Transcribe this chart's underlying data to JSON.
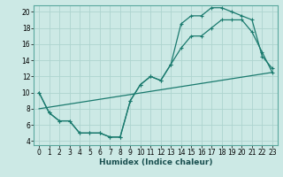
{
  "xlabel": "Humidex (Indice chaleur)",
  "ylabel": "",
  "bg_color": "#cce9e5",
  "grid_color": "#aed4cf",
  "line_color": "#1a7a6e",
  "xlim": [
    -0.5,
    23.5
  ],
  "ylim": [
    3.5,
    20.8
  ],
  "xticks": [
    0,
    1,
    2,
    3,
    4,
    5,
    6,
    7,
    8,
    9,
    10,
    11,
    12,
    13,
    14,
    15,
    16,
    17,
    18,
    19,
    20,
    21,
    22,
    23
  ],
  "yticks": [
    4,
    6,
    8,
    10,
    12,
    14,
    16,
    18,
    20
  ],
  "line1_x": [
    0,
    1,
    2,
    3,
    4,
    5,
    6,
    7,
    8,
    9,
    10,
    11,
    12,
    13,
    14,
    15,
    16,
    17,
    18,
    19,
    20,
    21,
    22,
    23
  ],
  "line1_y": [
    10,
    7.5,
    6.5,
    6.5,
    5,
    5,
    5,
    4.5,
    4.5,
    9,
    11,
    12,
    11.5,
    13.5,
    18.5,
    19.5,
    19.5,
    20.5,
    20.5,
    20,
    19.5,
    19,
    14.5,
    13
  ],
  "line2_x": [
    0,
    1,
    2,
    3,
    4,
    5,
    6,
    7,
    8,
    9,
    10,
    11,
    12,
    13,
    14,
    15,
    16,
    17,
    18,
    19,
    20,
    21,
    22,
    23
  ],
  "line2_y": [
    10,
    7.5,
    6.5,
    6.5,
    5,
    5,
    5,
    4.5,
    4.5,
    9,
    11,
    12,
    11.5,
    13.5,
    15.5,
    17,
    17,
    18,
    19,
    19,
    19,
    17.5,
    15,
    12.5
  ],
  "line3_x": [
    0,
    23
  ],
  "line3_y": [
    8.0,
    12.5
  ]
}
